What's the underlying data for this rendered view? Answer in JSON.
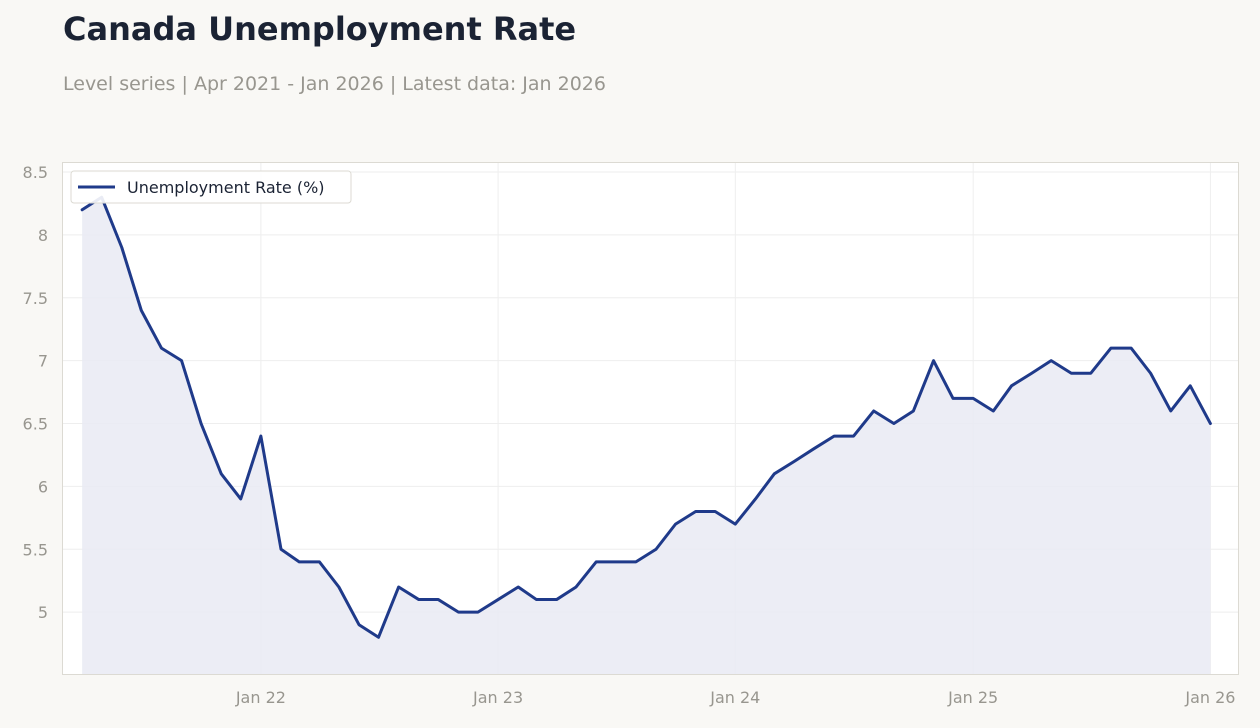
{
  "title": "Canada Unemployment Rate",
  "subtitle": "Level series | Apr 2021 - Jan 2026 | Latest data: Jan 2026",
  "colors": {
    "background": "#f9f8f5",
    "plot_background": "#ffffff",
    "line": "#1f3a8a",
    "area_fill": "#e9eaf3",
    "grid": "#eeeeee",
    "axis_text": "#98968f",
    "title": "#1b2334"
  },
  "chart_data": {
    "type": "area",
    "title": "Canada Unemployment Rate",
    "subtitle": "Level series | Apr 2021 - Jan 2026 | Latest data: Jan 2026",
    "xlabel": "",
    "ylabel": "",
    "ylim": [
      4.5,
      8.58
    ],
    "xlim": [
      "2021-03-01",
      "2026-02-14"
    ],
    "grid": true,
    "legend_position": "top-left",
    "y_ticks": [
      5,
      5.5,
      6,
      6.5,
      7,
      7.5,
      8,
      8.5
    ],
    "y_tick_labels": [
      "5",
      "5.5",
      "6",
      "6.5",
      "7",
      "7.5",
      "8",
      "8.5"
    ],
    "x_ticks": [
      "2022-01-01",
      "2023-01-01",
      "2024-01-01",
      "2025-01-01",
      "2026-01-01"
    ],
    "x_tick_labels": [
      "Jan 22",
      "Jan 23",
      "Jan 24",
      "Jan 25",
      "Jan 26"
    ],
    "x": [
      "2021-04-01",
      "2021-05-01",
      "2021-06-01",
      "2021-07-01",
      "2021-08-01",
      "2021-09-01",
      "2021-10-01",
      "2021-11-01",
      "2021-12-01",
      "2022-01-01",
      "2022-02-01",
      "2022-03-01",
      "2022-04-01",
      "2022-05-01",
      "2022-06-01",
      "2022-07-01",
      "2022-08-01",
      "2022-09-01",
      "2022-10-01",
      "2022-11-01",
      "2022-12-01",
      "2023-01-01",
      "2023-02-01",
      "2023-03-01",
      "2023-04-01",
      "2023-05-01",
      "2023-06-01",
      "2023-07-01",
      "2023-08-01",
      "2023-09-01",
      "2023-10-01",
      "2023-11-01",
      "2023-12-01",
      "2024-01-01",
      "2024-02-01",
      "2024-03-01",
      "2024-04-01",
      "2024-05-01",
      "2024-06-01",
      "2024-07-01",
      "2024-08-01",
      "2024-09-01",
      "2024-10-01",
      "2024-11-01",
      "2024-12-01",
      "2025-01-01",
      "2025-02-01",
      "2025-03-01",
      "2025-04-01",
      "2025-05-01",
      "2025-06-01",
      "2025-07-01",
      "2025-08-01",
      "2025-09-01",
      "2025-10-01",
      "2025-11-01",
      "2025-12-01",
      "2026-01-01"
    ],
    "series": [
      {
        "name": "Unemployment Rate (%)",
        "values": [
          8.2,
          8.3,
          7.9,
          7.4,
          7.1,
          7.0,
          6.5,
          6.1,
          5.9,
          6.4,
          5.5,
          5.4,
          5.4,
          5.2,
          4.9,
          4.8,
          5.2,
          5.1,
          5.1,
          5.0,
          5.0,
          5.1,
          5.2,
          5.1,
          5.1,
          5.2,
          5.4,
          5.4,
          5.4,
          5.5,
          5.7,
          5.8,
          5.8,
          5.7,
          5.9,
          6.1,
          6.2,
          6.3,
          6.4,
          6.4,
          6.6,
          6.5,
          6.6,
          7.0,
          6.7,
          6.7,
          6.6,
          6.8,
          6.9,
          7.0,
          6.9,
          6.9,
          7.1,
          7.1,
          6.9,
          6.6,
          6.8,
          6.5
        ]
      }
    ]
  }
}
